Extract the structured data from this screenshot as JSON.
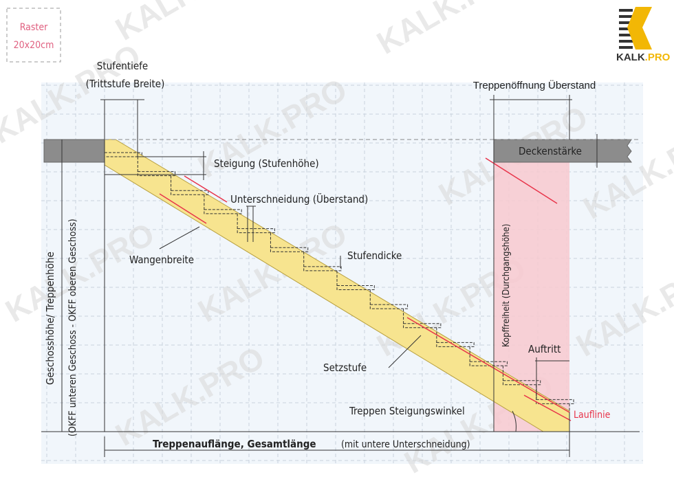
{
  "raster": {
    "line1": "Raster",
    "line2": "20x20cm"
  },
  "logo": {
    "text_main": "KALK",
    "text_accent": ".PRO",
    "colors": {
      "accent": "#f2b705",
      "dark": "#333333"
    }
  },
  "watermark": "KALK.PRO",
  "labels": {
    "stufentiefe": "Stufentiefe",
    "trittstufe_breite": "(Trittstufe Breite)",
    "treppenoeffnung": "Treppenöffnung Überstand",
    "deckenstaerke": "Deckenstärke",
    "steigung": "Steigung (Stufenhöhe)",
    "unterschneidung": "Unterschneidung (Überstand)",
    "wangenbreite": "Wangenbreite",
    "stufendicke": "Stufendicke",
    "kopffreiheit": "Kopffreiheit (Durchgangshöhe)",
    "auftritt": "Auftritt",
    "setzstufe": "Setzstufe",
    "steigungswinkel": "Treppen Steigungswinkel",
    "lauflinie": "Lauflinie",
    "geschosshoehe": "Geschosshöhe/ Treppenhöhe",
    "okff": "(OKFF unteren Geschoss - OKFF oberen Geschoss)",
    "gesamtlaenge": "Treppenauflänge, Gesamtlänge",
    "gesamtlaenge_note": "(mit untere Unterschneidung)"
  },
  "colors": {
    "stringer": "#f7e48f",
    "headroom": "#f8c9cf",
    "slab": "#8c8c8c",
    "red": "#e8344a",
    "grid_bg": "#f1f6fb"
  }
}
